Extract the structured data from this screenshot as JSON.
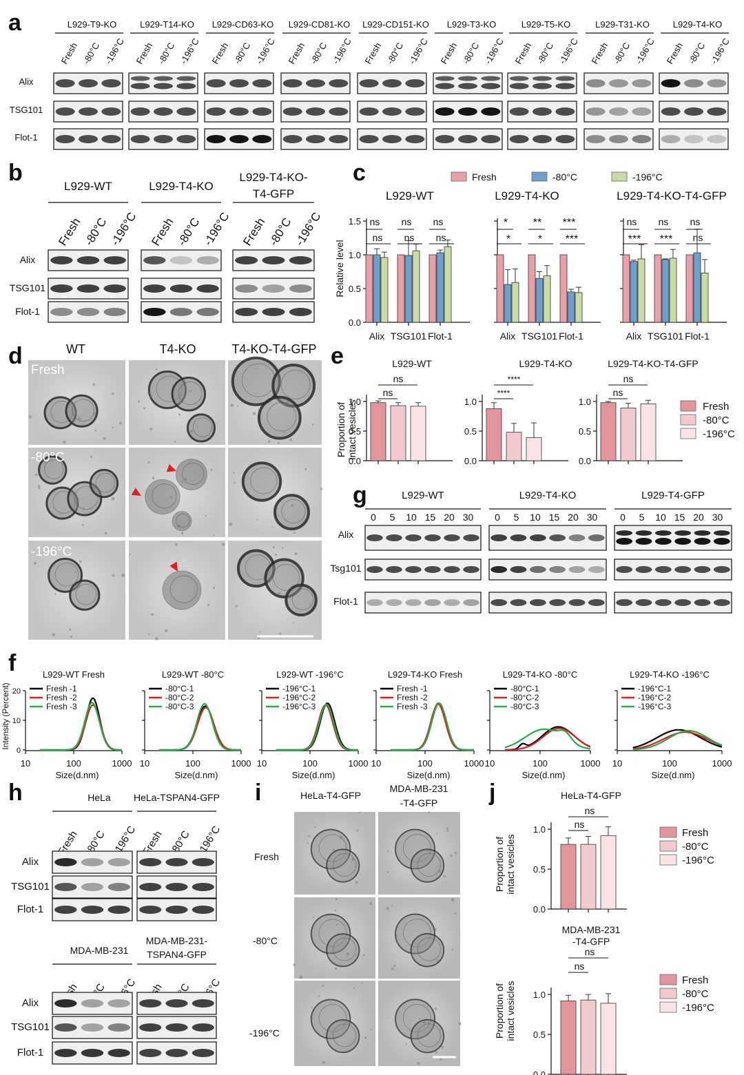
{
  "panel_letters": [
    "a",
    "b",
    "c",
    "d",
    "e",
    "f",
    "g",
    "h",
    "i",
    "j"
  ],
  "colors": {
    "fresh": "#e8a0a6",
    "m80": "#6f9fcc",
    "m196": "#c9dca6",
    "fresh_e": "#e3959c",
    "m80_e": "#f2c9cc",
    "m196_e": "#f9e3e4",
    "wt_line": "#000000",
    "red_line": "#e01f1f",
    "green_line": "#1fae4a",
    "arrow": "#e0201c"
  },
  "a": {
    "groups": [
      "L929-T9-KO",
      "L929-T14-KO",
      "L929-CD63-KO",
      "L929-CD81-KO",
      "L929-CD151-KO",
      "L929-T3-KO",
      "L929-T5-KO",
      "L929-T31-KO",
      "L929-T4-KO"
    ],
    "lanes": [
      "Fresh",
      "-80°C",
      "-196°C"
    ],
    "rows": [
      "Alix",
      "TSG101",
      "Flot-1"
    ]
  },
  "b": {
    "groups": [
      "L929-WT",
      "L929-T4-KO",
      "L929-T4-KO-\nT4-GFP"
    ],
    "group3_line1": "L929-T4-KO-",
    "group3_line2": "T4-GFP",
    "lanes": [
      "Fresh",
      "-80°C",
      "-196°C"
    ],
    "rows": [
      "Alix",
      "TSG101",
      "Flot-1"
    ]
  },
  "c": {
    "legend": [
      "Fresh",
      "-80°C",
      "-196°C"
    ],
    "ylabel": "Relative level",
    "yticks": [
      "0.0",
      "0.5",
      "1.0",
      "1.5"
    ],
    "chart_data": [
      {
        "type": "bar",
        "title": "L929-WT",
        "categories": [
          "Alix",
          "TSG101",
          "Flot-1"
        ],
        "ylim": [
          0,
          1.5
        ],
        "series": [
          {
            "name": "Fresh",
            "values": [
              1.0,
              1.0,
              1.0
            ]
          },
          {
            "name": "-80°C",
            "values": [
              1.0,
              0.99,
              1.03
            ]
          },
          {
            "name": "-196°C",
            "values": [
              0.96,
              1.06,
              1.12
            ]
          }
        ],
        "errors": [
          [
            0,
            0,
            0
          ],
          [
            0.09,
            0.22,
            0.04
          ],
          [
            0.08,
            0.1,
            0.1
          ]
        ],
        "annotations": [
          [
            "ns",
            "ns"
          ],
          [
            "ns",
            "ns"
          ],
          [
            "ns",
            "ns"
          ]
        ]
      },
      {
        "type": "bar",
        "title": "L929-T4-KO",
        "categories": [
          "Alix",
          "TSG101",
          "Flot-1"
        ],
        "ylim": [
          0,
          1.5
        ],
        "series": [
          {
            "name": "Fresh",
            "values": [
              1.0,
              1.0,
              1.0
            ]
          },
          {
            "name": "-80°C",
            "values": [
              0.56,
              0.65,
              0.45
            ]
          },
          {
            "name": "-196°C",
            "values": [
              0.59,
              0.69,
              0.44
            ]
          }
        ],
        "errors": [
          [
            0,
            0,
            0
          ],
          [
            0.22,
            0.1,
            0.04
          ],
          [
            0.2,
            0.15,
            0.08
          ]
        ],
        "annotations": [
          [
            "*",
            "*"
          ],
          [
            "*",
            "**"
          ],
          [
            "***",
            "***"
          ]
        ]
      },
      {
        "type": "bar",
        "title": "L929-T4-KO-T4-GFP",
        "categories": [
          "Alix",
          "TSG101",
          "Flot-1"
        ],
        "ylim": [
          0,
          1.5
        ],
        "series": [
          {
            "name": "Fresh",
            "values": [
              1.0,
              1.0,
              1.0
            ]
          },
          {
            "name": "-80°C",
            "values": [
              0.9,
              0.93,
              1.03
            ]
          },
          {
            "name": "-196°C",
            "values": [
              0.94,
              0.95,
              0.73
            ]
          }
        ],
        "errors": [
          [
            0,
            0,
            0
          ],
          [
            0.02,
            0.01,
            0.35
          ],
          [
            0.21,
            0.13,
            0.2
          ]
        ],
        "annotations": [
          [
            "***",
            "ns"
          ],
          [
            "***",
            "ns"
          ],
          [
            "ns",
            "ns"
          ]
        ]
      }
    ]
  },
  "d": {
    "cols": [
      "WT",
      "T4-KO",
      "T4-KO-T4-GFP"
    ],
    "rows": [
      "Fresh",
      "-80°C",
      "-196°C"
    ]
  },
  "e": {
    "legend": [
      "Fresh",
      "-80°C",
      "-196°C"
    ],
    "ylabel1": "Proportion of",
    "ylabel2": "intact vesicles",
    "yticks": [
      "0.0",
      "0.5",
      "1.0"
    ],
    "chart_data": [
      {
        "type": "bar",
        "title": "L929-WT",
        "categories": [
          "Fresh",
          "-80°C",
          "-196°C"
        ],
        "values": [
          0.98,
          0.93,
          0.92
        ],
        "errors": [
          0.03,
          0.05,
          0.06
        ],
        "ylim": [
          0,
          1.25
        ],
        "annotations": [
          "ns",
          "ns"
        ]
      },
      {
        "type": "bar",
        "title": "L929-T4-KO",
        "categories": [
          "Fresh",
          "-80°C",
          "-196°C"
        ],
        "values": [
          0.88,
          0.48,
          0.39
        ],
        "errors": [
          0.1,
          0.15,
          0.25
        ],
        "ylim": [
          0,
          1.25
        ],
        "annotations": [
          "****",
          "****"
        ]
      },
      {
        "type": "bar",
        "title": "L929-T4-KO-T4-GFP",
        "categories": [
          "Fresh",
          "-80°C",
          "-196°C"
        ],
        "values": [
          0.98,
          0.89,
          0.96
        ],
        "errors": [
          0.02,
          0.08,
          0.06
        ],
        "ylim": [
          0,
          1.25
        ],
        "annotations": [
          "ns",
          "ns"
        ]
      }
    ]
  },
  "f": {
    "ylabel": "Intensity (Percent)",
    "xlabel": "Size(d.nm)",
    "yticks": [
      "0",
      "10",
      "20"
    ],
    "xticks": [
      "10",
      "100",
      "1000"
    ],
    "chart_data": [
      {
        "type": "line",
        "title": "L929-WT Fresh",
        "legend": [
          "Fresh -1",
          "Fresh  -2",
          "Fresh -3"
        ],
        "peaks": [
          [
            250,
            17.5,
            0.14
          ],
          [
            250,
            15.2,
            0.15
          ],
          [
            240,
            16,
            0.15
          ]
        ]
      },
      {
        "type": "line",
        "title": "L929-WT -80°C",
        "legend": [
          "-80°C-1",
          "-80°C-2",
          "-80°C-3"
        ],
        "peaks": [
          [
            180,
            14.8,
            0.17
          ],
          [
            185,
            14.3,
            0.17
          ],
          [
            175,
            15.6,
            0.16
          ]
        ]
      },
      {
        "type": "line",
        "title": "L929-WT -196°C",
        "legend": [
          "-196°C-1",
          "-196°C-2",
          "-196°C-3"
        ],
        "peaks": [
          [
            230,
            15.8,
            0.15
          ],
          [
            210,
            15.2,
            0.15
          ],
          [
            220,
            15.4,
            0.15
          ]
        ]
      },
      {
        "type": "line",
        "title": "L929-T4-KO Fresh",
        "legend": [
          "Fresh -1",
          "Fresh -2",
          "Fresh -3"
        ],
        "peaks": [
          [
            190,
            15.8,
            0.15
          ],
          [
            185,
            15.5,
            0.15
          ],
          [
            195,
            15.8,
            0.15
          ]
        ]
      },
      {
        "type": "line",
        "title": "L929-T4-KO -80°C",
        "legend": [
          "-80°C-1",
          "-80°C-2",
          "-80°C-3"
        ],
        "peaks": [
          [
            230,
            7.8,
            0.32
          ],
          [
            240,
            7.3,
            0.32
          ],
          [
            120,
            7.0,
            0.38
          ]
        ]
      },
      {
        "type": "line",
        "title": "L929-T4-KO -196°C",
        "legend": [
          "-196°C-1",
          "-196°C-2",
          "-196°C-3"
        ],
        "peaks": [
          [
            150,
            6.8,
            0.42
          ],
          [
            200,
            6.0,
            0.42
          ],
          [
            230,
            6.5,
            0.38
          ]
        ]
      }
    ]
  },
  "g": {
    "groups": [
      "L929-WT",
      "L929-T4-KO",
      "L929-T4-GFP"
    ],
    "times": [
      "0",
      "5",
      "10",
      "15",
      "20",
      "30"
    ],
    "rows": [
      "Alix",
      "Tsg101",
      "Flot-1"
    ]
  },
  "h": {
    "top_groups": [
      "HeLa",
      "HeLa-TSPAN4-GFP"
    ],
    "bottom_group1": "MDA-MB-231",
    "bottom_group2_line1": "MDA-MB-231-",
    "bottom_group2_line2": "TSPAN4-GFP",
    "lanes": [
      "Fresh",
      "-80°C",
      "-196°C"
    ],
    "rows": [
      "Alix",
      "TSG101",
      "Flot-1"
    ]
  },
  "i": {
    "col1": "HeLa-T4-GFP",
    "col2_line1": "MDA-MB-231",
    "col2_line2": "-T4-GFP",
    "rows": [
      "Fresh",
      "-80°C",
      "-196°C"
    ]
  },
  "j": {
    "legend": [
      "Fresh",
      "-80°C",
      "-196°C"
    ],
    "ylabel1": "Proportion of",
    "ylabel2": "intact vesicles",
    "yticks": [
      "0.0",
      "0.5",
      "1.0"
    ],
    "title2_line1": "MDA-MB-231",
    "title2_line2": "-T4-GFP",
    "chart_data": [
      {
        "type": "bar",
        "title": "HeLa-T4-GFP",
        "categories": [
          "Fresh",
          "-80°C",
          "-196°C"
        ],
        "values": [
          0.81,
          0.81,
          0.92
        ],
        "errors": [
          0.08,
          0.1,
          0.11
        ],
        "ylim": [
          0,
          1.15
        ],
        "annotations": [
          "ns",
          "ns"
        ]
      },
      {
        "type": "bar",
        "title": "MDA-MB-231-T4-GFP",
        "categories": [
          "Fresh",
          "-80°C",
          "-196°C"
        ],
        "values": [
          0.92,
          0.93,
          0.89
        ],
        "errors": [
          0.07,
          0.07,
          0.12
        ],
        "ylim": [
          0,
          1.15
        ],
        "annotations": [
          "ns",
          "ns"
        ]
      }
    ]
  }
}
